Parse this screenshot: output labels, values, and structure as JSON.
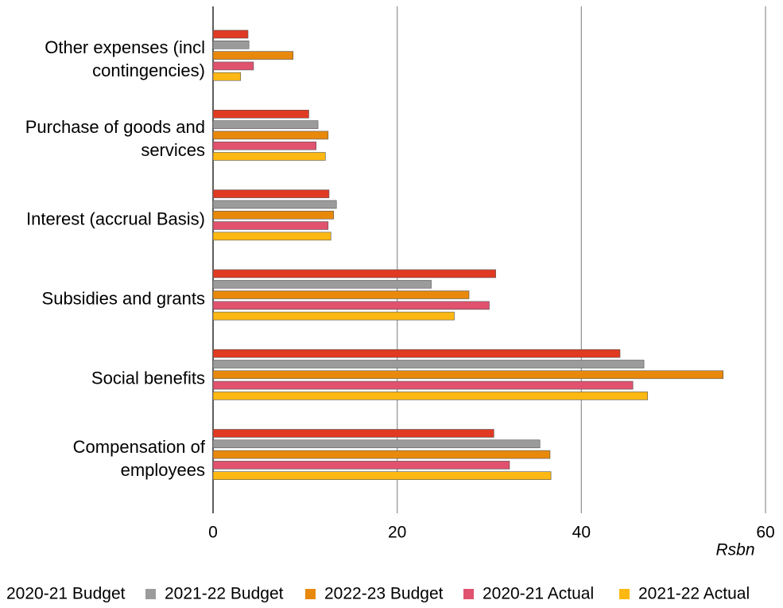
{
  "chart_data": {
    "type": "bar",
    "orientation": "horizontal",
    "categories": [
      "Other expenses (incl contingencies)",
      "Purchase of goods and services",
      "Interest (accrual Basis)",
      "Subsidies and grants",
      "Social benefits",
      "Compensation of employees"
    ],
    "series": [
      {
        "name": "2020-21 Budget",
        "color": "#e03a22",
        "values": [
          3.8,
          10.4,
          12.6,
          30.7,
          44.2,
          30.5
        ]
      },
      {
        "name": "2021-22 Budget",
        "color": "#9b9b9b",
        "values": [
          3.9,
          11.4,
          13.4,
          23.7,
          46.8,
          35.5
        ]
      },
      {
        "name": "2022-23 Budget",
        "color": "#e8890c",
        "values": [
          8.7,
          12.5,
          13.1,
          27.8,
          55.4,
          36.6
        ]
      },
      {
        "name": "2020-21 Actual",
        "color": "#e0526e",
        "values": [
          4.4,
          11.2,
          12.5,
          30.0,
          45.6,
          32.2
        ]
      },
      {
        "name": "2021-22 Actual",
        "color": "#fdb813",
        "values": [
          3.0,
          12.2,
          12.8,
          26.2,
          47.2,
          36.7
        ]
      }
    ],
    "xlabel": "Rsbn",
    "xlim": [
      0,
      60
    ],
    "xticks": [
      0,
      20,
      40,
      60
    ],
    "grid": true,
    "legend": "bottom"
  }
}
